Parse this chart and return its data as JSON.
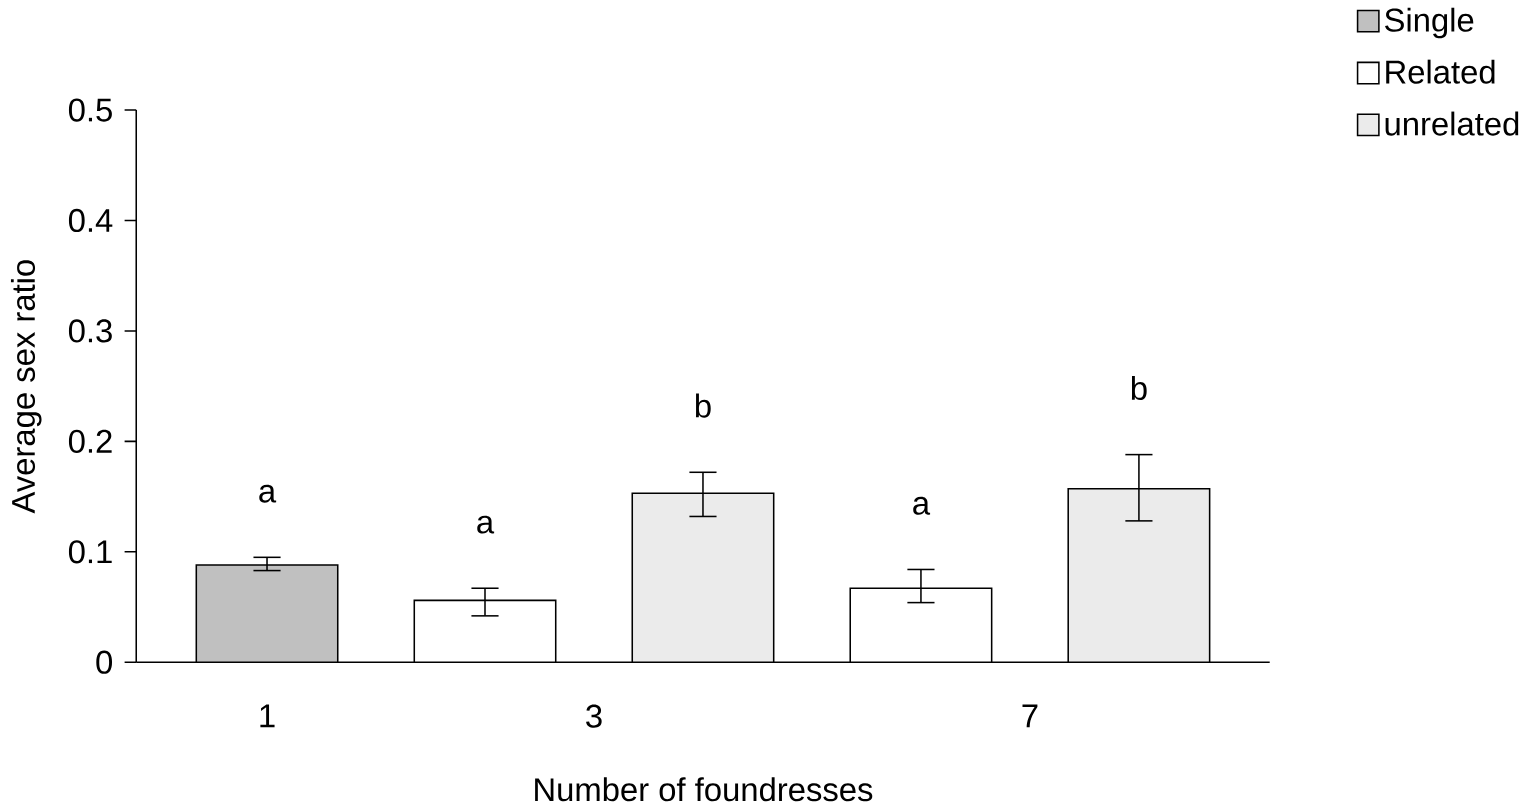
{
  "chart_data": {
    "type": "bar",
    "xlabel": "Number of foundresses",
    "ylabel": "Average sex ratio",
    "categories": [
      "1",
      "3",
      "7"
    ],
    "ylim": [
      0,
      0.5
    ],
    "yticks": [
      0,
      0.1,
      0.2,
      0.3,
      0.4,
      0.5
    ],
    "legend": "top right",
    "series": [
      {
        "name": "Single",
        "color": "#c0c0c0",
        "values": [
          0.088,
          null,
          null
        ],
        "errors": [
          [
            0.083,
            0.095
          ],
          null,
          null
        ],
        "value_labels": [
          "a",
          null,
          null
        ]
      },
      {
        "name": "Related",
        "color": "#ffffff",
        "values": [
          null,
          0.056,
          0.067
        ],
        "errors": [
          null,
          [
            0.042,
            0.067
          ],
          [
            0.054,
            0.084
          ]
        ],
        "value_labels": [
          null,
          "a",
          "a"
        ]
      },
      {
        "name": "unrelated",
        "color": "#ebebeb",
        "values": [
          null,
          0.153,
          0.157
        ],
        "errors": [
          null,
          [
            0.132,
            0.172
          ],
          [
            0.128,
            0.188
          ]
        ],
        "value_labels": [
          null,
          "b",
          "b"
        ]
      }
    ]
  }
}
